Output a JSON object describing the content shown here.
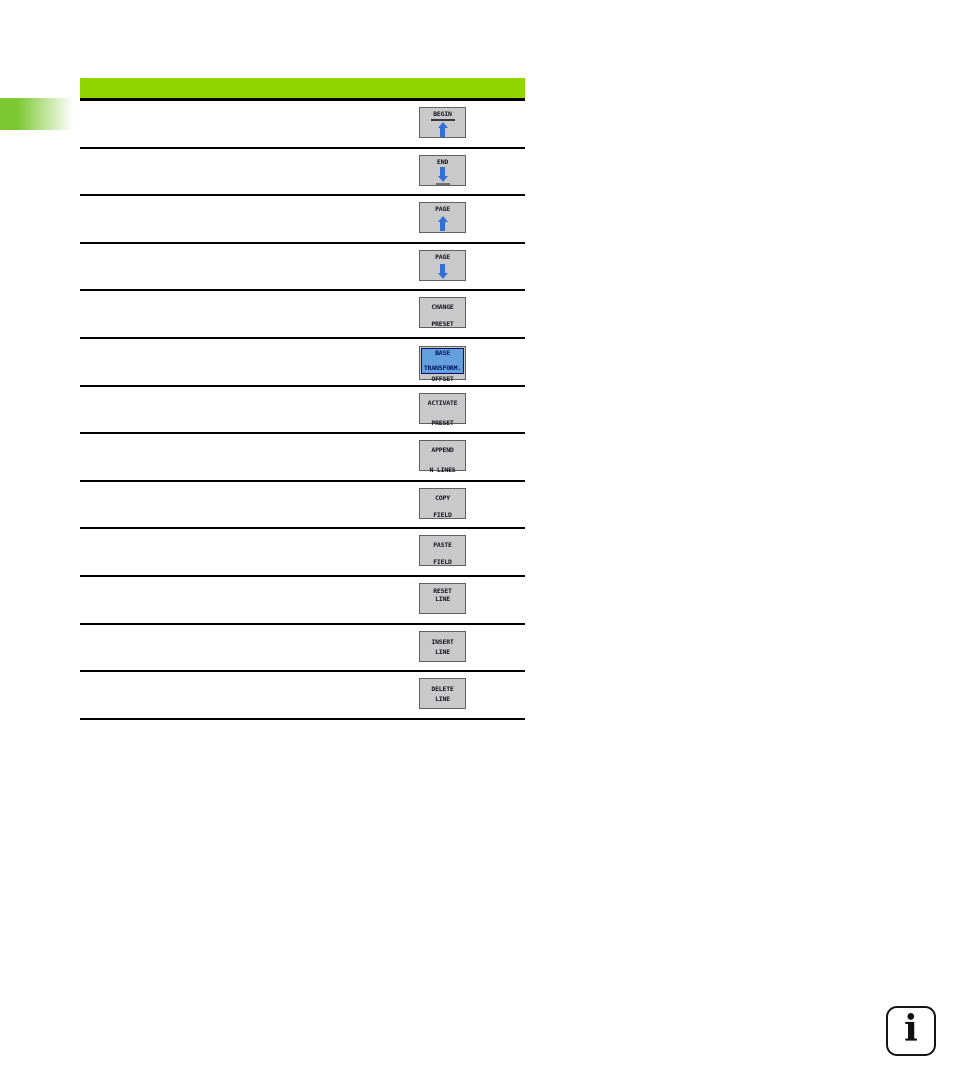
{
  "colors": {
    "header_green": "#91d500",
    "tab_green": "#7cc832",
    "rule_black": "#000000",
    "softkey_gray": "#c9c9c9",
    "softkey_border": "#606060",
    "text_dark": "#14141e",
    "arrow_blue": "#2f6fd6",
    "highlight_blue": "#63a0dd",
    "highlight_border": "#0d0d6b",
    "highlight_text": "#001060"
  },
  "softkeys": [
    {
      "name": "begin",
      "line1": "BEGIN",
      "icon": "arrow-up-to-line"
    },
    {
      "name": "end",
      "line1": "END",
      "icon": "arrow-down-to-line"
    },
    {
      "name": "page-up",
      "line1": "PAGE",
      "icon": "arrow-up"
    },
    {
      "name": "page-down",
      "line1": "PAGE",
      "icon": "arrow-down"
    },
    {
      "name": "change-preset",
      "line1": "CHANGE",
      "line2": "PRESET"
    },
    {
      "name": "base-transform-offset",
      "blue1": "BASE",
      "blue2": "TRANSFORM.",
      "line2": "OFFSET"
    },
    {
      "name": "activate-preset",
      "line1": "ACTIVATE",
      "line2": "PRESET"
    },
    {
      "name": "append-n-lines",
      "line1": "APPEND",
      "line2": "N LINES"
    },
    {
      "name": "copy-field",
      "line1": "COPY",
      "line2": "FIELD"
    },
    {
      "name": "paste-field",
      "line1": "PASTE",
      "line2": "FIELD"
    },
    {
      "name": "reset-line",
      "line1": "RESET",
      "line2": "LINE"
    },
    {
      "name": "insert-line",
      "line1": "INSERT",
      "line2": "LINE"
    },
    {
      "name": "delete-line",
      "line1": "DELETE",
      "line2": "LINE"
    }
  ],
  "info_symbol": "i"
}
